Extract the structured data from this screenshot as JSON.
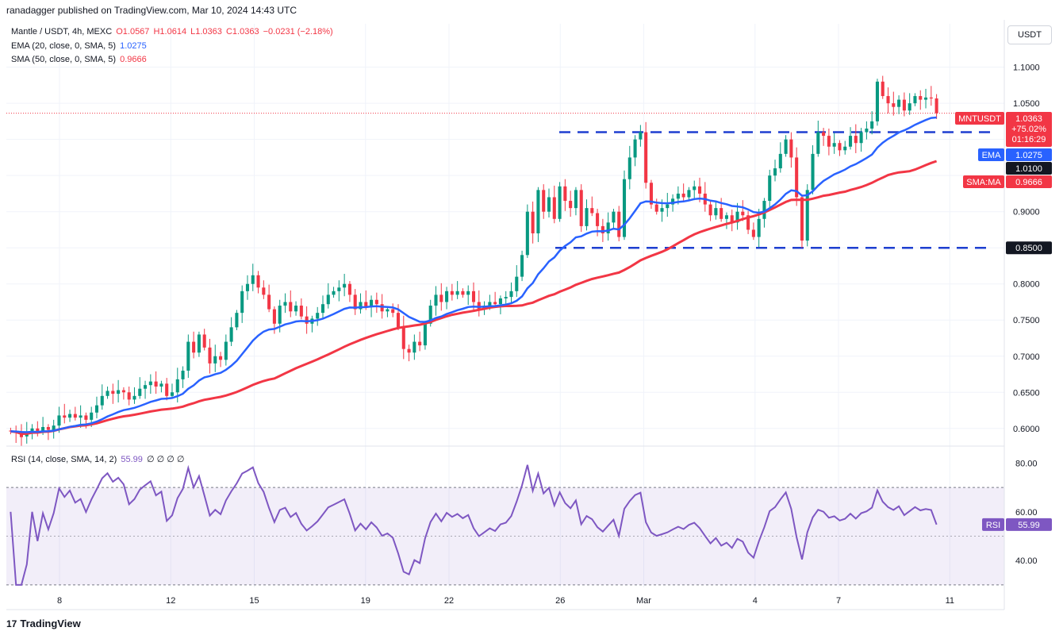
{
  "header": {
    "credit": "ranadagger published on TradingView.com, Mar 10, 2024 14:43 UTC"
  },
  "legend": {
    "symbol": "Mantle / USDT, 4h, MEXC",
    "open": "O1.0567",
    "high": "H1.0614",
    "low": "L1.0363",
    "close": "C1.0363",
    "change": "−0.0231 (−2.18%)",
    "ema_label": "EMA (20, close, 0, SMA, 5)",
    "ema_value": "1.0275",
    "sma_label": "SMA (50, close, 0, SMA, 5)",
    "sma_value": "0.9666",
    "rsi_label": "RSI (14, close, SMA, 14, 2)",
    "rsi_value": "55.99",
    "rsi_extra": "∅ ∅ ∅ ∅"
  },
  "unit": "USDT",
  "footer": {
    "logo": "TradingView"
  },
  "colors": {
    "up": "#089981",
    "down": "#f23645",
    "ema": "#2962ff",
    "sma": "#f23645",
    "rsi": "#7e57c2",
    "level": "#1e3fd0"
  },
  "chart_data": {
    "type": "candlestick",
    "timeframe": "4h",
    "price_axis": {
      "ticks": [
        0.6,
        0.65,
        0.7,
        0.75,
        0.8,
        0.85,
        0.9,
        0.95,
        1.0,
        1.05,
        1.1
      ],
      "tick_labels": [
        "0.6000",
        "0.6500",
        "0.7000",
        "0.7500",
        "0.8000",
        "",
        "0.9000",
        "",
        "",
        "1.0500",
        "1.1000"
      ],
      "range": [
        0.58,
        1.16
      ]
    },
    "rsi_axis": {
      "ticks": [
        40,
        60,
        80
      ],
      "tick_labels": [
        "40.00",
        "60.00",
        "80.00"
      ],
      "range": [
        29,
        86
      ],
      "band": [
        30,
        70
      ],
      "midline": 50
    },
    "x_labels": [
      {
        "label": "8",
        "day": 8
      },
      {
        "label": "12",
        "day": 12
      },
      {
        "label": "15",
        "day": 15
      },
      {
        "label": "19",
        "day": 19
      },
      {
        "label": "22",
        "day": 22
      },
      {
        "label": "26",
        "day": 26
      },
      {
        "label": "Mar",
        "day": 29
      },
      {
        "label": "4",
        "day": 33
      },
      {
        "label": "7",
        "day": 36
      },
      {
        "label": "11",
        "day": 40
      }
    ],
    "levels": [
      {
        "value": 1.01,
        "label": "1.0100"
      },
      {
        "value": 0.85,
        "label": "0.8500"
      }
    ],
    "price_labels": [
      {
        "name": "MNTUSDT",
        "value": "1.0363",
        "lines": [
          "+75.02%",
          "01:16:29"
        ],
        "color": "#f23645"
      },
      {
        "name": "EMA",
        "value": "1.0275",
        "color": "#2962ff"
      },
      {
        "name": "SMA:MA",
        "value": "0.9666",
        "color": "#f23645"
      }
    ],
    "rsi_label": {
      "name": "RSI",
      "value": "55.99"
    },
    "candles_open_close": [
      [
        0.597,
        0.596
      ],
      [
        0.596,
        0.594
      ],
      [
        0.594,
        0.588
      ],
      [
        0.589,
        0.593
      ],
      [
        0.593,
        0.6
      ],
      [
        0.6,
        0.595
      ],
      [
        0.595,
        0.602
      ],
      [
        0.602,
        0.598
      ],
      [
        0.598,
        0.604
      ],
      [
        0.604,
        0.618
      ],
      [
        0.618,
        0.615
      ],
      [
        0.615,
        0.62
      ],
      [
        0.62,
        0.615
      ],
      [
        0.615,
        0.618
      ],
      [
        0.618,
        0.612
      ],
      [
        0.612,
        0.622
      ],
      [
        0.622,
        0.632
      ],
      [
        0.632,
        0.645
      ],
      [
        0.645,
        0.652
      ],
      [
        0.652,
        0.648
      ],
      [
        0.648,
        0.653
      ],
      [
        0.653,
        0.65
      ],
      [
        0.65,
        0.64
      ],
      [
        0.64,
        0.645
      ],
      [
        0.645,
        0.655
      ],
      [
        0.655,
        0.66
      ],
      [
        0.66,
        0.665
      ],
      [
        0.665,
        0.658
      ],
      [
        0.658,
        0.662
      ],
      [
        0.662,
        0.645
      ],
      [
        0.645,
        0.65
      ],
      [
        0.65,
        0.668
      ],
      [
        0.668,
        0.68
      ],
      [
        0.68,
        0.72
      ],
      [
        0.72,
        0.705
      ],
      [
        0.705,
        0.73
      ],
      [
        0.73,
        0.712
      ],
      [
        0.712,
        0.69
      ],
      [
        0.69,
        0.7
      ],
      [
        0.7,
        0.695
      ],
      [
        0.695,
        0.72
      ],
      [
        0.72,
        0.74
      ],
      [
        0.74,
        0.76
      ],
      [
        0.76,
        0.79
      ],
      [
        0.79,
        0.8
      ],
      [
        0.8,
        0.812
      ],
      [
        0.812,
        0.795
      ],
      [
        0.795,
        0.785
      ],
      [
        0.785,
        0.765
      ],
      [
        0.765,
        0.745
      ],
      [
        0.745,
        0.77
      ],
      [
        0.77,
        0.775
      ],
      [
        0.775,
        0.762
      ],
      [
        0.762,
        0.77
      ],
      [
        0.77,
        0.755
      ],
      [
        0.755,
        0.745
      ],
      [
        0.745,
        0.752
      ],
      [
        0.752,
        0.76
      ],
      [
        0.76,
        0.772
      ],
      [
        0.772,
        0.785
      ],
      [
        0.785,
        0.79
      ],
      [
        0.79,
        0.795
      ],
      [
        0.795,
        0.8
      ],
      [
        0.8,
        0.785
      ],
      [
        0.785,
        0.765
      ],
      [
        0.765,
        0.775
      ],
      [
        0.775,
        0.768
      ],
      [
        0.768,
        0.778
      ],
      [
        0.778,
        0.772
      ],
      [
        0.772,
        0.762
      ],
      [
        0.762,
        0.765
      ],
      [
        0.765,
        0.76
      ],
      [
        0.76,
        0.74
      ],
      [
        0.74,
        0.71
      ],
      [
        0.71,
        0.705
      ],
      [
        0.705,
        0.72
      ],
      [
        0.72,
        0.715
      ],
      [
        0.715,
        0.745
      ],
      [
        0.745,
        0.77
      ],
      [
        0.77,
        0.785
      ],
      [
        0.785,
        0.775
      ],
      [
        0.775,
        0.79
      ],
      [
        0.79,
        0.785
      ],
      [
        0.785,
        0.79
      ],
      [
        0.79,
        0.785
      ],
      [
        0.785,
        0.79
      ],
      [
        0.79,
        0.775
      ],
      [
        0.775,
        0.765
      ],
      [
        0.765,
        0.77
      ],
      [
        0.77,
        0.775
      ],
      [
        0.775,
        0.772
      ],
      [
        0.772,
        0.78
      ],
      [
        0.78,
        0.782
      ],
      [
        0.782,
        0.79
      ],
      [
        0.79,
        0.81
      ],
      [
        0.81,
        0.84
      ],
      [
        0.84,
        0.9
      ],
      [
        0.9,
        0.87
      ],
      [
        0.87,
        0.93
      ],
      [
        0.93,
        0.9
      ],
      [
        0.9,
        0.92
      ],
      [
        0.92,
        0.89
      ],
      [
        0.89,
        0.935
      ],
      [
        0.935,
        0.915
      ],
      [
        0.915,
        0.905
      ],
      [
        0.905,
        0.93
      ],
      [
        0.93,
        0.88
      ],
      [
        0.88,
        0.905
      ],
      [
        0.905,
        0.898
      ],
      [
        0.898,
        0.88
      ],
      [
        0.88,
        0.87
      ],
      [
        0.87,
        0.885
      ],
      [
        0.885,
        0.9
      ],
      [
        0.9,
        0.865
      ],
      [
        0.865,
        0.945
      ],
      [
        0.945,
        0.975
      ],
      [
        0.975,
        1.0
      ],
      [
        1.0,
        1.01
      ],
      [
        1.01,
        0.94
      ],
      [
        0.94,
        0.91
      ],
      [
        0.91,
        0.9
      ],
      [
        0.9,
        0.905
      ],
      [
        0.905,
        0.91
      ],
      [
        0.91,
        0.918
      ],
      [
        0.918,
        0.925
      ],
      [
        0.925,
        0.92
      ],
      [
        0.92,
        0.93
      ],
      [
        0.93,
        0.935
      ],
      [
        0.935,
        0.925
      ],
      [
        0.925,
        0.91
      ],
      [
        0.91,
        0.895
      ],
      [
        0.895,
        0.905
      ],
      [
        0.905,
        0.89
      ],
      [
        0.89,
        0.895
      ],
      [
        0.895,
        0.885
      ],
      [
        0.885,
        0.9
      ],
      [
        0.9,
        0.895
      ],
      [
        0.895,
        0.875
      ],
      [
        0.875,
        0.865
      ],
      [
        0.865,
        0.89
      ],
      [
        0.89,
        0.915
      ],
      [
        0.915,
        0.95
      ],
      [
        0.95,
        0.96
      ],
      [
        0.96,
        0.98
      ],
      [
        0.98,
        1.0
      ],
      [
        1.0,
        0.975
      ],
      [
        0.975,
        0.92
      ],
      [
        0.92,
        0.86
      ],
      [
        0.86,
        0.93
      ],
      [
        0.93,
        0.98
      ],
      [
        0.98,
        1.01
      ],
      [
        1.01,
        1.005
      ],
      [
        1.005,
        0.99
      ],
      [
        0.99,
        0.995
      ],
      [
        0.995,
        0.985
      ],
      [
        0.985,
        0.99
      ],
      [
        0.99,
        1.005
      ],
      [
        1.005,
        0.995
      ],
      [
        0.995,
        1.01
      ],
      [
        1.01,
        1.015
      ],
      [
        1.015,
        1.025
      ],
      [
        1.025,
        1.08
      ],
      [
        1.08,
        1.06
      ],
      [
        1.06,
        1.05
      ],
      [
        1.05,
        1.045
      ],
      [
        1.045,
        1.055
      ],
      [
        1.055,
        1.04
      ],
      [
        1.04,
        1.05
      ],
      [
        1.05,
        1.06
      ],
      [
        1.06,
        1.055
      ],
      [
        1.055,
        1.058
      ],
      [
        1.058,
        1.0567
      ],
      [
        1.0567,
        1.0363
      ]
    ]
  }
}
